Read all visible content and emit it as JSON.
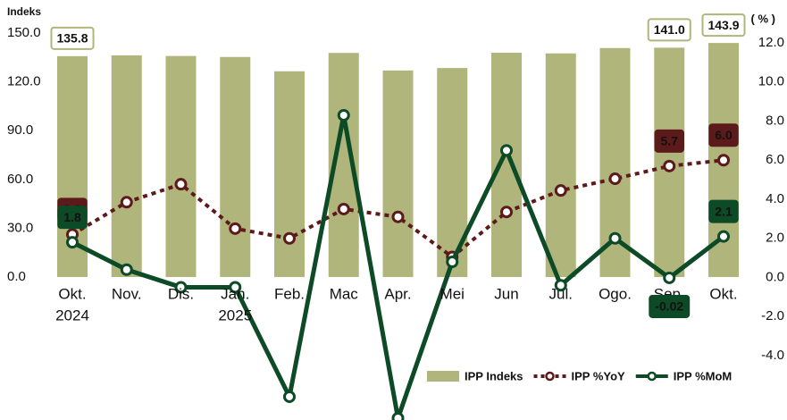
{
  "chart_data": {
    "type": "bar_line",
    "y_axis_title": "Indeks",
    "y2_axis_title": "( % )",
    "categories": [
      "Okt.",
      "Nov.",
      "Dis.",
      "Jan.",
      "Feb.",
      "Mac",
      "Apr.",
      "Mei",
      "Jun",
      "Jul.",
      "Ogo.",
      "Sep.",
      "Okt."
    ],
    "year_labels": [
      {
        "index": 0,
        "label": "2024"
      },
      {
        "index": 3,
        "label": "2025"
      }
    ],
    "ylim": [
      0,
      150
    ],
    "yticks": [
      {
        "value": 0,
        "label": "0.0"
      },
      {
        "value": 30,
        "label": "30.0"
      },
      {
        "value": 60,
        "label": "60.0"
      },
      {
        "value": 90,
        "label": "90.0"
      },
      {
        "value": 120,
        "label": "120.0"
      },
      {
        "value": 150,
        "label": "150.0"
      }
    ],
    "y2lim": [
      -4,
      12
    ],
    "y2ticks": [
      {
        "value": -4,
        "label": "-4.0"
      },
      {
        "value": -2,
        "label": "-2.0"
      },
      {
        "value": 0,
        "label": "0.0"
      },
      {
        "value": 2,
        "label": "2.0"
      },
      {
        "value": 4,
        "label": "4.0"
      },
      {
        "value": 6,
        "label": "6.0"
      },
      {
        "value": 8,
        "label": "8.0"
      },
      {
        "value": 10,
        "label": "10.0"
      },
      {
        "value": 12,
        "label": "12.0"
      }
    ],
    "series": [
      {
        "name": "IPP Indeks",
        "kind": "bar",
        "color": "#b0b57c",
        "values": [
          135.8,
          136.3,
          135.9,
          135.3,
          126.5,
          137.8,
          127.0,
          128.5,
          137.9,
          137.5,
          140.8,
          141.0,
          143.9
        ],
        "value_labels": [
          "135.8",
          null,
          null,
          null,
          null,
          null,
          null,
          null,
          null,
          null,
          null,
          "141.0",
          "143.9"
        ]
      },
      {
        "name": "IPP %YoY",
        "kind": "line",
        "axis": "y2",
        "color": "#5c1a1a",
        "dash": true,
        "values": [
          2.2,
          3.85,
          4.77,
          2.5,
          2.0,
          3.5,
          3.1,
          1.05,
          3.35,
          4.45,
          5.05,
          5.7,
          6.0
        ],
        "value_labels": [
          "2.2",
          null,
          null,
          null,
          null,
          null,
          null,
          null,
          null,
          null,
          null,
          "5.7",
          "6.0"
        ]
      },
      {
        "name": "IPP %MoM",
        "kind": "line",
        "axis": "y2",
        "color": "#0d4a26",
        "dash": false,
        "values": [
          1.8,
          0.4,
          -0.5,
          -0.5,
          -6.1,
          8.3,
          -7.2,
          0.8,
          6.5,
          -0.4,
          2.0,
          -0.02,
          2.1
        ],
        "value_labels": [
          "1.8",
          null,
          null,
          null,
          null,
          null,
          null,
          null,
          null,
          null,
          null,
          "-0.02",
          "2.1"
        ]
      }
    ]
  }
}
